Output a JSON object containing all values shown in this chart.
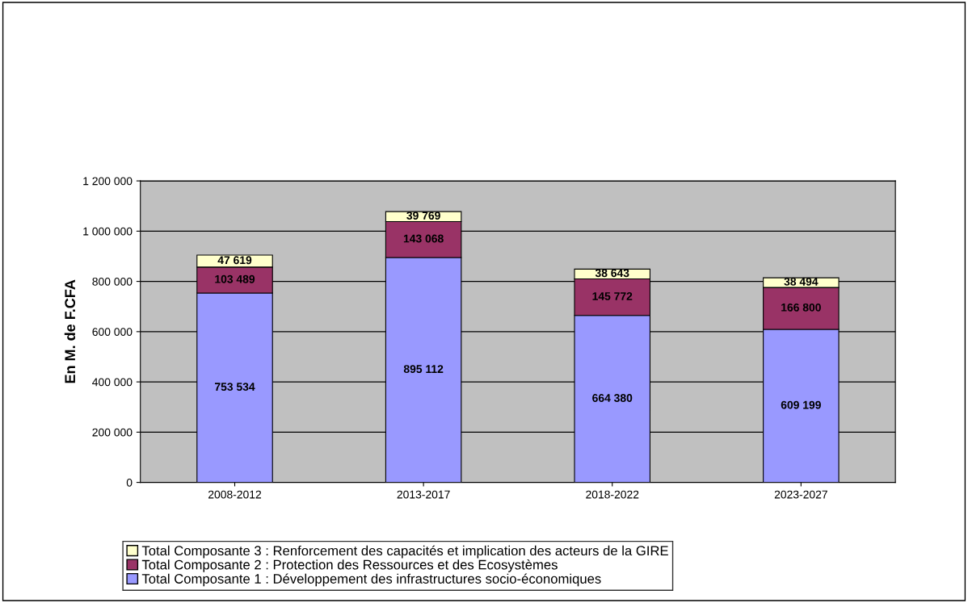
{
  "chart_data": {
    "type": "bar",
    "stacked": true,
    "ylabel": "En M. de F.CFA",
    "categories": [
      "2008-2012",
      "2013-2017",
      "2018-2022",
      "2023-2027"
    ],
    "series": [
      {
        "name": "Total Composante 1 : Développement des infrastructures socio-économiques",
        "color": "#9999ff",
        "values": [
          753534,
          895112,
          664380,
          609199
        ],
        "value_labels": [
          "753 534",
          "895 112",
          "664 380",
          "609 199"
        ]
      },
      {
        "name": "Total Composante 2 : Protection des Ressources et des Ecosystèmes",
        "color": "#993366",
        "values": [
          103489,
          143068,
          145772,
          166800
        ],
        "value_labels": [
          "103 489",
          "143 068",
          "145 772",
          "166 800"
        ]
      },
      {
        "name": "Total Composante 3 : Renforcement des capacités et implication des acteurs de la GIRE",
        "color": "#ffffcc",
        "values": [
          47619,
          39769,
          38643,
          38494
        ],
        "value_labels": [
          "47 619",
          "39 769",
          "38 643",
          "38 494"
        ]
      }
    ],
    "ylim": [
      0,
      1200000
    ],
    "yticks": [
      0,
      {
        "value": 200000,
        "label": "200 000"
      },
      {
        "value": 400000,
        "label": "400 000"
      },
      {
        "value": 600000,
        "label": "600 000"
      },
      {
        "value": 800000,
        "label": "800 000"
      },
      {
        "value": 1000000,
        "label": "1 000 000"
      },
      {
        "value": 1200000,
        "label": "1 200 000"
      }
    ],
    "grid": "y",
    "legend": "bottom"
  }
}
